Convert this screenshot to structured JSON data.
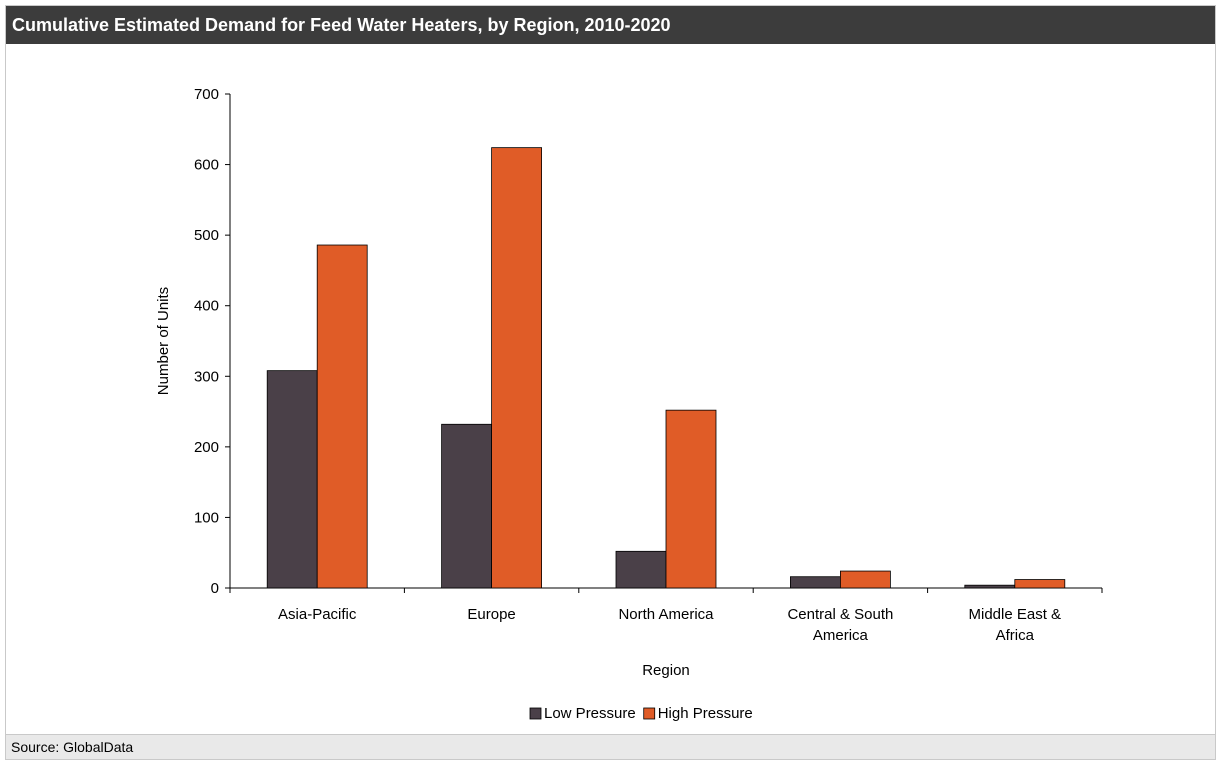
{
  "header": {
    "title": "Cumulative Estimated Demand for Feed Water Heaters, by Region, 2010-2020"
  },
  "footer": {
    "source": "Source: GlobalData"
  },
  "colors": {
    "low": "#4a4048",
    "high": "#e05c27",
    "title_bg": "#3c3c3c"
  },
  "chart_data": {
    "type": "bar",
    "title": "Cumulative Estimated Demand for Feed Water Heaters, by Region, 2010-2020",
    "xlabel": "Region",
    "ylabel": "Number of Units",
    "ylim": [
      0,
      700
    ],
    "yticks": [
      0,
      100,
      200,
      300,
      400,
      500,
      600,
      700
    ],
    "grid": false,
    "legend_position": "bottom",
    "categories": [
      [
        "Asia-Pacific"
      ],
      [
        "Europe"
      ],
      [
        "North America"
      ],
      [
        "Central & South",
        "America"
      ],
      [
        "Middle East &",
        "Africa"
      ]
    ],
    "series": [
      {
        "name": "Low Pressure",
        "color": "#4a4048",
        "values": [
          308,
          232,
          52,
          16,
          4
        ]
      },
      {
        "name": "High Pressure",
        "color": "#e05c27",
        "values": [
          486,
          624,
          252,
          24,
          12
        ]
      }
    ]
  }
}
